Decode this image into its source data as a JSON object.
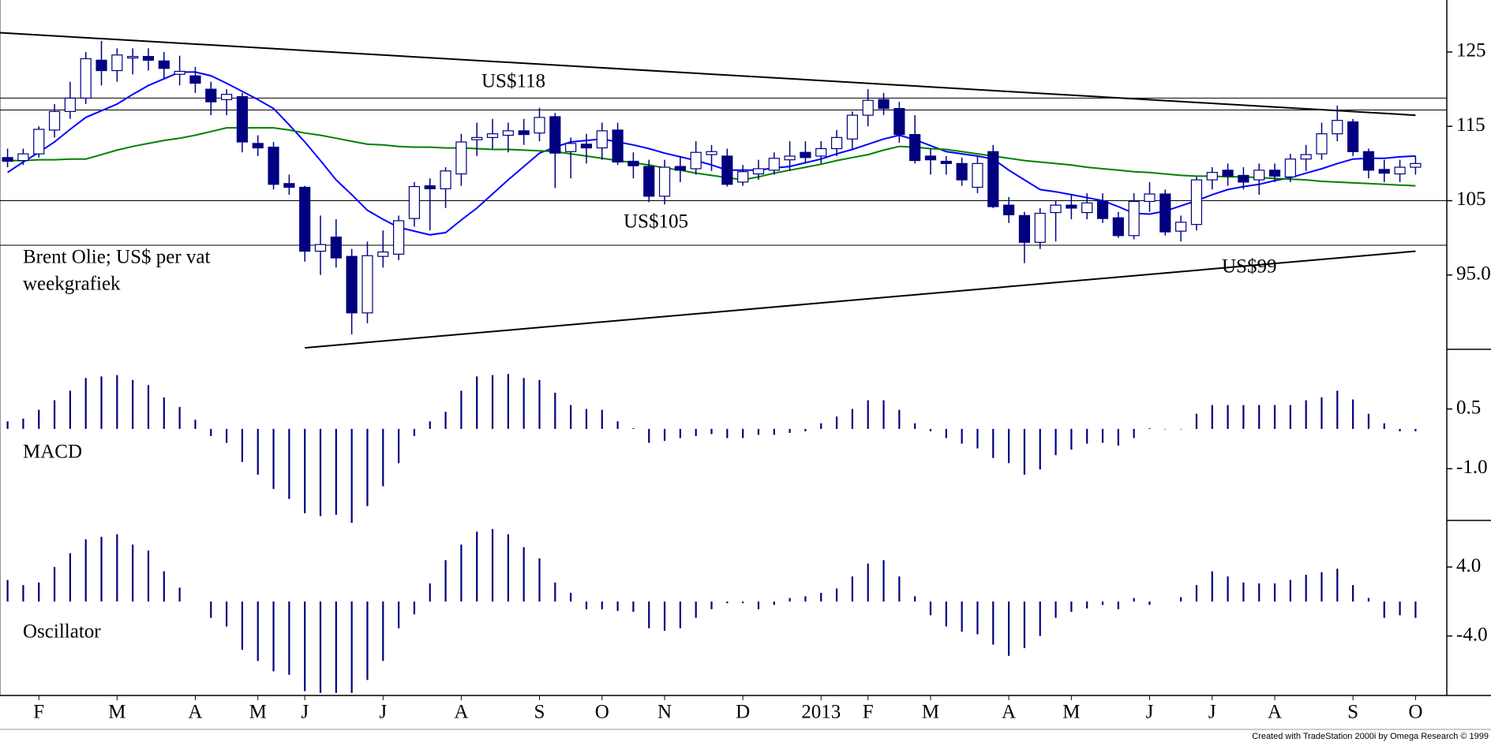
{
  "chart_data": [
    {
      "type": "candlestick",
      "title": "Brent Olie; US$ per vat",
      "subtitle": "weekgrafiek",
      "categories": [
        null,
        null,
        "F",
        null,
        null,
        null,
        null,
        "M",
        null,
        null,
        null,
        null,
        "A",
        null,
        null,
        null,
        "M",
        null,
        null,
        "J",
        null,
        null,
        null,
        null,
        "J",
        null,
        null,
        null,
        null,
        "A",
        null,
        null,
        null,
        null,
        "S",
        null,
        null,
        null,
        "O",
        null,
        null,
        null,
        "N",
        null,
        null,
        null,
        null,
        "D",
        null,
        null,
        null,
        null,
        "2013",
        null,
        null,
        "F",
        null,
        null,
        null,
        "M",
        null,
        null,
        null,
        null,
        "A",
        null,
        null,
        null,
        "M",
        null,
        null,
        null,
        null,
        "J",
        null,
        null,
        null,
        "J",
        null,
        null,
        null,
        "A",
        null,
        null,
        null,
        null,
        "S",
        null,
        null,
        null,
        "O"
      ],
      "open": [
        110.8,
        110.4,
        111.3,
        114.5,
        117,
        118.8,
        123.9,
        122.5,
        124.2,
        124.4,
        123.8,
        122,
        121.8,
        120,
        118.6,
        119,
        112.7,
        112.2,
        107.3,
        106.8,
        98.2,
        100.1,
        97.5,
        89.9,
        97.5,
        97.8,
        102.6,
        107,
        106.6,
        108.6,
        113.2,
        113.5,
        113.8,
        114.4,
        114.1,
        116.3,
        111.6,
        112.6,
        112.1,
        114.5,
        110.3,
        109.6,
        105.6,
        109.6,
        109.3,
        111.2,
        111,
        107.5,
        108.6,
        109.1,
        110.5,
        111.5,
        111,
        112,
        113.3,
        116.5,
        118.6,
        117.4,
        113.9,
        111,
        110.3,
        110,
        106.8,
        111.6,
        104.4,
        103,
        99.4,
        103.4,
        104.4,
        103.4,
        104.9,
        102.7,
        100.3,
        104.9,
        105.9,
        100.9,
        101.8,
        107.8,
        109.1,
        108.4,
        107.8,
        109.1,
        108.2,
        110.6,
        111.3,
        114,
        115.6,
        111.6,
        109.2,
        108.6,
        109.5
      ],
      "high": [
        112,
        112,
        115,
        118,
        121,
        125,
        126.5,
        125.5,
        125.5,
        125.5,
        125,
        124.5,
        123,
        121,
        120,
        119.5,
        113.8,
        112.9,
        108.5,
        107,
        103,
        102.5,
        98.5,
        99.5,
        101,
        103,
        107.5,
        108,
        109.5,
        114,
        115.5,
        116,
        115.5,
        116,
        117.5,
        116.8,
        113.5,
        114,
        115.5,
        115.5,
        111.5,
        110.5,
        110.5,
        111,
        113,
        112.5,
        112,
        109.8,
        110.5,
        111.5,
        113,
        113,
        113,
        114.5,
        117,
        120,
        119.5,
        118.3,
        116.5,
        112,
        111,
        110.8,
        111,
        112.5,
        105.5,
        103.5,
        104,
        105,
        105.8,
        106,
        106,
        103.5,
        106,
        107.5,
        106.5,
        103,
        108.2,
        109.5,
        110,
        109.5,
        110,
        110,
        111.3,
        112.5,
        115.5,
        117.8,
        116,
        112,
        110.5,
        110.5,
        111
      ],
      "low": [
        109.5,
        109.8,
        110.8,
        113.5,
        116,
        118,
        120.5,
        121,
        122,
        122.5,
        121.5,
        120.5,
        119.5,
        116.5,
        116.5,
        111.5,
        111,
        106.5,
        105.8,
        96.8,
        95,
        96,
        87,
        88.5,
        96,
        97,
        101.5,
        101,
        104,
        107,
        111,
        112,
        111.5,
        112.5,
        113,
        106.7,
        108,
        110,
        110.5,
        109.8,
        108,
        104.8,
        104.5,
        107.5,
        108.5,
        109,
        106.9,
        107,
        107.8,
        108.5,
        109,
        110,
        110,
        111,
        112,
        115,
        116.5,
        112.8,
        110,
        108.5,
        108.5,
        107,
        106,
        104,
        102,
        96.6,
        98.5,
        99.5,
        102.5,
        102.5,
        102,
        100,
        99.8,
        103.5,
        100.3,
        99.5,
        101,
        106.5,
        107,
        106.5,
        105.8,
        107.5,
        107.5,
        109,
        110.5,
        113,
        111,
        108,
        107.5,
        107.5,
        108.5
      ],
      "close": [
        110.3,
        111.3,
        114.6,
        117,
        118.8,
        124.1,
        122.5,
        124.6,
        124.4,
        123.9,
        122.8,
        122.4,
        120.8,
        118.3,
        119.3,
        112.9,
        112.1,
        107.2,
        106.8,
        98.2,
        99.1,
        97.3,
        89.9,
        97.6,
        98.1,
        102.3,
        106.9,
        106.6,
        109,
        112.9,
        113.5,
        114,
        114.4,
        113.9,
        116.2,
        111.4,
        112.7,
        112.1,
        114.4,
        110.2,
        109.7,
        105.6,
        109.5,
        109.1,
        111.5,
        111.6,
        107.2,
        108.9,
        109.3,
        110.7,
        111,
        110.8,
        112,
        113.5,
        116.5,
        118.5,
        117.4,
        113.9,
        110.4,
        110.5,
        110,
        107.8,
        110,
        104.2,
        103.1,
        99.4,
        103.3,
        104.4,
        104,
        104.7,
        102.6,
        100.3,
        104.9,
        105.9,
        100.8,
        102.1,
        107.8,
        108.8,
        108.3,
        107.5,
        109.1,
        108.3,
        110.6,
        111.2,
        114,
        115.8,
        111.6,
        109.1,
        108.7,
        109.5,
        110
      ],
      "up_color": "#ffffff",
      "down_color": "#000080",
      "color": "#000080",
      "series": [
        {
          "color": "#0000ff",
          "values": [
            108.8,
            110.2,
            111.5,
            112.9,
            114.6,
            116.2,
            117.1,
            118,
            119.3,
            120.5,
            121.4,
            122.3,
            122.3,
            121.8,
            120.8,
            119.7,
            118.6,
            117.4,
            115.2,
            112.9,
            110.4,
            107.8,
            105.8,
            103.7,
            102.5,
            101.4,
            100.9,
            100.4,
            100.7,
            102.4,
            104,
            105.9,
            107.8,
            109.6,
            111.4,
            112.2,
            112.9,
            113.1,
            113.3,
            112.9,
            112.5,
            112,
            111.4,
            110.9,
            110.4,
            109.8,
            109.1,
            109.1,
            109.1,
            109.4,
            109.6,
            110.1,
            110.6,
            111.3,
            111.9,
            112.6,
            113.3,
            113.8,
            113.2,
            112.4,
            111.6,
            111.3,
            111,
            110.6,
            109.1,
            107.8,
            106.5,
            106.2,
            105.8,
            105.4,
            105,
            104.2,
            103.3,
            103.2,
            103.6,
            104.3,
            105,
            105.8,
            106.5,
            106.9,
            107.2,
            107.7,
            108.1,
            108.7,
            109.3,
            110,
            110.6,
            110.7,
            110.7,
            110.9,
            111
          ]
        },
        {
          "color": "#008000",
          "values": [
            110.4,
            110.4,
            110.5,
            110.5,
            110.6,
            110.6,
            111.2,
            111.8,
            112.3,
            112.7,
            113.1,
            113.4,
            113.8,
            114.3,
            114.8,
            114.8,
            114.8,
            114.8,
            114.5,
            114.1,
            113.8,
            113.4,
            113,
            112.6,
            112.5,
            112.3,
            112.2,
            112.2,
            112.1,
            112.1,
            112,
            111.9,
            111.9,
            111.8,
            111.7,
            111.6,
            111.3,
            111,
            110.7,
            110.4,
            110.1,
            109.8,
            109.4,
            109.1,
            108.7,
            108.4,
            108.1,
            107.8,
            108.2,
            108.7,
            109.1,
            109.5,
            109.9,
            110.4,
            110.8,
            111.2,
            111.8,
            112.3,
            112.2,
            112,
            111.9,
            111.6,
            111.3,
            111,
            110.7,
            110.4,
            110.2,
            110,
            109.8,
            109.5,
            109.3,
            109.1,
            108.9,
            108.8,
            108.6,
            108.4,
            108.3,
            108.3,
            108.2,
            108.2,
            108.1,
            108,
            107.9,
            107.8,
            107.6,
            107.5,
            107.4,
            107.3,
            107.2,
            107.1,
            107
          ]
        }
      ],
      "hlines": [
        118.8,
        117.2,
        105,
        99
      ],
      "trendlines": [
        {
          "x": [
            -0.5,
            90
          ],
          "y": [
            127.6,
            116.5
          ]
        },
        {
          "x": [
            19,
            90
          ],
          "y": [
            85.2,
            98.2
          ]
        }
      ],
      "annotations": [
        "US$118",
        "US$105",
        "US$99"
      ],
      "ylim": [
        85,
        132
      ],
      "yticks": [
        {
          "value": 95,
          "label": "95.0"
        },
        105,
        115,
        125
      ]
    },
    {
      "type": "bar",
      "label": "MACD",
      "color": "#000080",
      "values": [
        0.19,
        0.26,
        0.48,
        0.72,
        0.96,
        1.28,
        1.32,
        1.35,
        1.23,
        1.1,
        0.79,
        0.55,
        0.23,
        -0.18,
        -0.35,
        -0.83,
        -1.15,
        -1.51,
        -1.76,
        -2.12,
        -2.19,
        -2.16,
        -2.36,
        -1.94,
        -1.44,
        -0.86,
        -0.18,
        0.19,
        0.43,
        0.96,
        1.32,
        1.35,
        1.38,
        1.28,
        1.23,
        0.91,
        0.6,
        0.5,
        0.48,
        0.19,
        0.02,
        -0.35,
        -0.3,
        -0.23,
        -0.18,
        -0.13,
        -0.23,
        -0.23,
        -0.15,
        -0.15,
        -0.1,
        -0.06,
        0.14,
        0.31,
        0.5,
        0.72,
        0.72,
        0.48,
        0.14,
        -0.06,
        -0.23,
        -0.37,
        -0.49,
        -0.73,
        -0.86,
        -1.15,
        -1.02,
        -0.66,
        -0.52,
        -0.37,
        -0.35,
        -0.42,
        -0.23,
        0.02,
        -0.01,
        -0.01,
        0.38,
        0.6,
        0.6,
        0.6,
        0.6,
        0.6,
        0.6,
        0.72,
        0.79,
        0.96,
        0.74,
        0.38,
        0.14,
        -0.06,
        -0.06
      ],
      "ylim": [
        -2.3,
        2.0
      ],
      "yticks": [
        0.5,
        {
          "value": -1,
          "label": "-1.0"
        }
      ]
    },
    {
      "type": "bar",
      "label": "Oscillator",
      "color": "#000080",
      "values": [
        2.5,
        1.9,
        2.2,
        4,
        5.6,
        7.2,
        7.5,
        7.8,
        6.6,
        5.9,
        3.5,
        1.6,
        0,
        -1.9,
        -2.9,
        -5.6,
        -6.9,
        -8.1,
        -8.5,
        -10.4,
        -10.6,
        -10.6,
        -10.6,
        -9.1,
        -6.9,
        -3.1,
        -1.5,
        2.1,
        4.8,
        6.6,
        8.1,
        8.4,
        7.8,
        6.3,
        5,
        2.2,
        1,
        -0.9,
        -0.9,
        -1.1,
        -1.2,
        -3.1,
        -3.4,
        -3.1,
        -1.9,
        -0.9,
        -0.2,
        -0.2,
        -0.9,
        -0.4,
        0.4,
        0.6,
        1,
        1.5,
        2.9,
        4.4,
        4.8,
        2.9,
        0.6,
        -1.6,
        -2.9,
        -3.5,
        -3.8,
        -5,
        -6.3,
        -5.4,
        -4,
        -1.9,
        -1.2,
        -0.8,
        -0.4,
        -0.9,
        0.4,
        -0.4,
        0,
        0.5,
        1.9,
        3.5,
        2.9,
        2.2,
        2.1,
        2.1,
        2.5,
        3.1,
        3.4,
        3.8,
        1.9,
        0.4,
        -1.9,
        -1.6,
        -1.9
      ],
      "ylim": [
        -10.9,
        9.4
      ],
      "yticks": [
        {
          "value": 4,
          "label": "4.0"
        },
        {
          "value": -4,
          "label": "-4.0"
        }
      ]
    }
  ],
  "footer": "Created with TradeStation 2000i by Omega Research © 1999"
}
